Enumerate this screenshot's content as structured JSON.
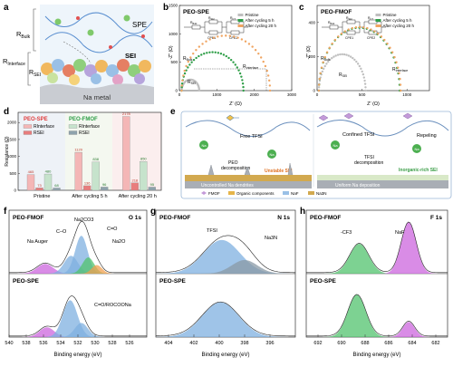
{
  "panels": {
    "a": {
      "letter": "a",
      "labels": {
        "bulk": "R",
        "bulk_sub": "Bulk",
        "interface": "R",
        "interface_sub": "Interface",
        "sei_r": "R",
        "sei_r_sub": "SEI",
        "spe": "SPE",
        "sei": "SEI",
        "metal": "Na metal"
      }
    },
    "b": {
      "letter": "b",
      "title": "PEO-SPE",
      "circuit": {
        "r1": "R",
        "r1_sub": "Bulk",
        "r2": "R",
        "r2_sub": "SEI",
        "r3": "R",
        "r3_sub": "CT",
        "cpe1": "CPE1",
        "cpe2": "CPE2"
      },
      "annotations": {
        "bulk": "R",
        "bulk_sub": "Bulk",
        "interface": "R",
        "interface_sub": "Interface",
        "sei": "R",
        "sei_sub": "SEI"
      }
    },
    "c": {
      "letter": "c",
      "title": "PEO-FMOF",
      "circuit": {
        "r1": "R",
        "r1_sub": "Bulk",
        "r2": "R",
        "r2_sub": "SEI",
        "r3": "R",
        "r3_sub": "CT",
        "cpe1": "CPE1",
        "cpe2": "CPE2"
      },
      "annotations": {
        "bulk": "R",
        "bulk_sub": "Bulk",
        "interface": "R",
        "interface_sub": "Interface",
        "sei": "R",
        "sei_sub": "SEI"
      }
    },
    "d": {
      "letter": "d"
    },
    "e": {
      "letter": "e",
      "labels": {
        "free_tfsi": "Free TFSI",
        "peo_decomp_1": "PEO",
        "peo_decomp_2": "decomposition",
        "unstable_sei": "Unstable SEI",
        "uncontrolled": "Uncontrolled Na dendrites",
        "confined_tfsi": "Confined TFSI",
        "repeling": "Repeling",
        "tfsi_decomp_1": "TFSI",
        "tfsi_decomp_2": "decomposition",
        "inorganic_sei": "Inorganic-rich SEI",
        "uniform": "Uniform Na deposition",
        "na": "Na",
        "legend_fmof": "FMOF",
        "legend_organic": "Organic components",
        "legend_naf": "NaF",
        "legend_na3n": "Na3N"
      }
    },
    "f": {
      "letter": "f",
      "element": "O 1s",
      "top": "PEO-FMOF",
      "bottom": "PEO-SPE",
      "peaks": {
        "auger": "Na Auger",
        "co": "C–O",
        "na2co3": "Na2CO3",
        "ceo": "C=O",
        "na2o": "Na2O",
        "coona": "C=O/ROCOONa"
      }
    },
    "g": {
      "letter": "g",
      "element": "N 1s",
      "top": "PEO-FMOF",
      "bottom": "PEO-SPE",
      "peaks": {
        "tfsi": "TFSI",
        "na3n": "Na3N"
      }
    },
    "h": {
      "letter": "h",
      "element": "F 1s",
      "top": "PEO-FMOF",
      "bottom": "PEO-SPE",
      "peaks": {
        "cf3": "-CF3",
        "naf": "NaF"
      }
    }
  },
  "chart_data": [
    {
      "panel": "b",
      "type": "scatter",
      "title": "PEO-SPE",
      "xlabel": "Z' (Ω)",
      "ylabel": "-Z'' (Ω)",
      "xlim": [
        0,
        3000
      ],
      "ylim": [
        0,
        1500
      ],
      "xticks": [
        0,
        1000,
        2000,
        3000
      ],
      "yticks": [
        0,
        500,
        1000,
        1500
      ],
      "series": [
        {
          "name": "Pristine",
          "color": "#bfbfbf",
          "r0": 60,
          "arc": 470
        },
        {
          "name": "After cycling 5 h",
          "color": "#2e9e47",
          "r0": 60,
          "arc": 1650
        },
        {
          "name": "After cycling 20 h",
          "color": "#f0a562",
          "r0": 60,
          "arc": 2360
        }
      ]
    },
    {
      "panel": "c",
      "type": "scatter",
      "title": "PEO-FMOF",
      "xlabel": "Z' (Ω)",
      "ylabel": "-Z'' (Ω)",
      "xlim": [
        0,
        1250
      ],
      "ylim": [
        0,
        500
      ],
      "xticks": [
        0,
        500,
        1000
      ],
      "yticks": [
        0,
        200,
        400
      ],
      "series": [
        {
          "name": "Pristine",
          "color": "#bfbfbf",
          "r0": 20,
          "arc": 520
        },
        {
          "name": "After cycling 5 h",
          "color": "#2e9e47",
          "r0": 20,
          "arc": 900
        },
        {
          "name": "After cycling 20 h",
          "color": "#f0a562",
          "r0": 20,
          "arc": 910
        }
      ]
    },
    {
      "panel": "d",
      "type": "bar",
      "ylabel": "Resistance (Ω)",
      "ylim": [
        0,
        2300
      ],
      "categories": [
        "Pristine",
        "After cycling 5 h",
        "After cycling 20 h"
      ],
      "groups": [
        {
          "name": "PEO-SPE",
          "color": "#e03c3c"
        },
        {
          "name": "PEO-FMOF",
          "color": "#2e9e47"
        }
      ],
      "series": [
        {
          "name": "R_Interface",
          "group": "PEO-SPE",
          "legend": "RInterface",
          "color": "#f4b6b6",
          "values": [
            465,
            1120,
            2178
          ]
        },
        {
          "name": "R_SEI",
          "group": "PEO-SPE",
          "legend": "RSEI",
          "color": "#e87d7d",
          "values": [
            73,
            136,
            218
          ]
        },
        {
          "name": "R_Interface",
          "group": "PEO-FMOF",
          "legend": "RInterface",
          "color": "#c6e3cc",
          "values": [
            480,
            838,
            850
          ]
        },
        {
          "name": "R_SEI",
          "group": "PEO-FMOF",
          "legend": "RSEI",
          "color": "#8fa3ad",
          "values": [
            68,
            96,
            95
          ]
        }
      ]
    },
    {
      "panel": "f",
      "type": "line",
      "xlabel": "Binding energy (eV)",
      "xlim": [
        540,
        524
      ],
      "xticks": [
        540,
        538,
        536,
        534,
        532,
        530,
        528,
        526
      ],
      "top_peaks": [
        {
          "center": 535.8,
          "fwhm": 2.2,
          "height": 0.18,
          "color": "#cc66dd"
        },
        {
          "center": 532.8,
          "fwhm": 1.9,
          "height": 0.33,
          "color": "#7fb0e0"
        },
        {
          "center": 531.6,
          "fwhm": 1.7,
          "height": 0.7,
          "color": "#7fb0e0"
        },
        {
          "center": 530.8,
          "fwhm": 1.6,
          "height": 0.3,
          "color": "#52c36d"
        },
        {
          "center": 529.8,
          "fwhm": 1.4,
          "height": 0.16,
          "color": "#f0a050"
        }
      ],
      "bottom_peaks": [
        {
          "center": 535.6,
          "fwhm": 2.0,
          "height": 0.18,
          "color": "#cc66dd"
        },
        {
          "center": 532.9,
          "fwhm": 2.0,
          "height": 0.68,
          "color": "#7fb0e0"
        },
        {
          "center": 531.6,
          "fwhm": 1.8,
          "height": 0.26,
          "color": "#7fb0e0"
        }
      ]
    },
    {
      "panel": "g",
      "type": "line",
      "xlabel": "Binding energy (eV)",
      "xlim": [
        405,
        394
      ],
      "xticks": [
        404,
        402,
        400,
        398,
        396
      ],
      "top_peaks": [
        {
          "center": 399.8,
          "fwhm": 3.4,
          "height": 0.62,
          "color": "#7fb0e0"
        },
        {
          "center": 398.0,
          "fwhm": 2.4,
          "height": 0.25,
          "color": "#8a9aa6"
        }
      ],
      "bottom_peaks": [
        {
          "center": 399.9,
          "fwhm": 3.4,
          "height": 0.64,
          "color": "#7fb0e0"
        }
      ]
    },
    {
      "panel": "h",
      "type": "line",
      "xlabel": "Binding energy (eV)",
      "xlim": [
        693,
        681
      ],
      "xticks": [
        692,
        690,
        688,
        686,
        684,
        682
      ],
      "top_peaks": [
        {
          "center": 688.5,
          "fwhm": 1.9,
          "height": 0.55,
          "color": "#52c36d"
        },
        {
          "center": 684.3,
          "fwhm": 1.5,
          "height": 0.95,
          "color": "#cc66dd"
        }
      ],
      "bottom_peaks": [
        {
          "center": 688.7,
          "fwhm": 1.8,
          "height": 0.78,
          "color": "#52c36d"
        },
        {
          "center": 684.3,
          "fwhm": 1.2,
          "height": 0.28,
          "color": "#cc66dd"
        }
      ]
    }
  ]
}
